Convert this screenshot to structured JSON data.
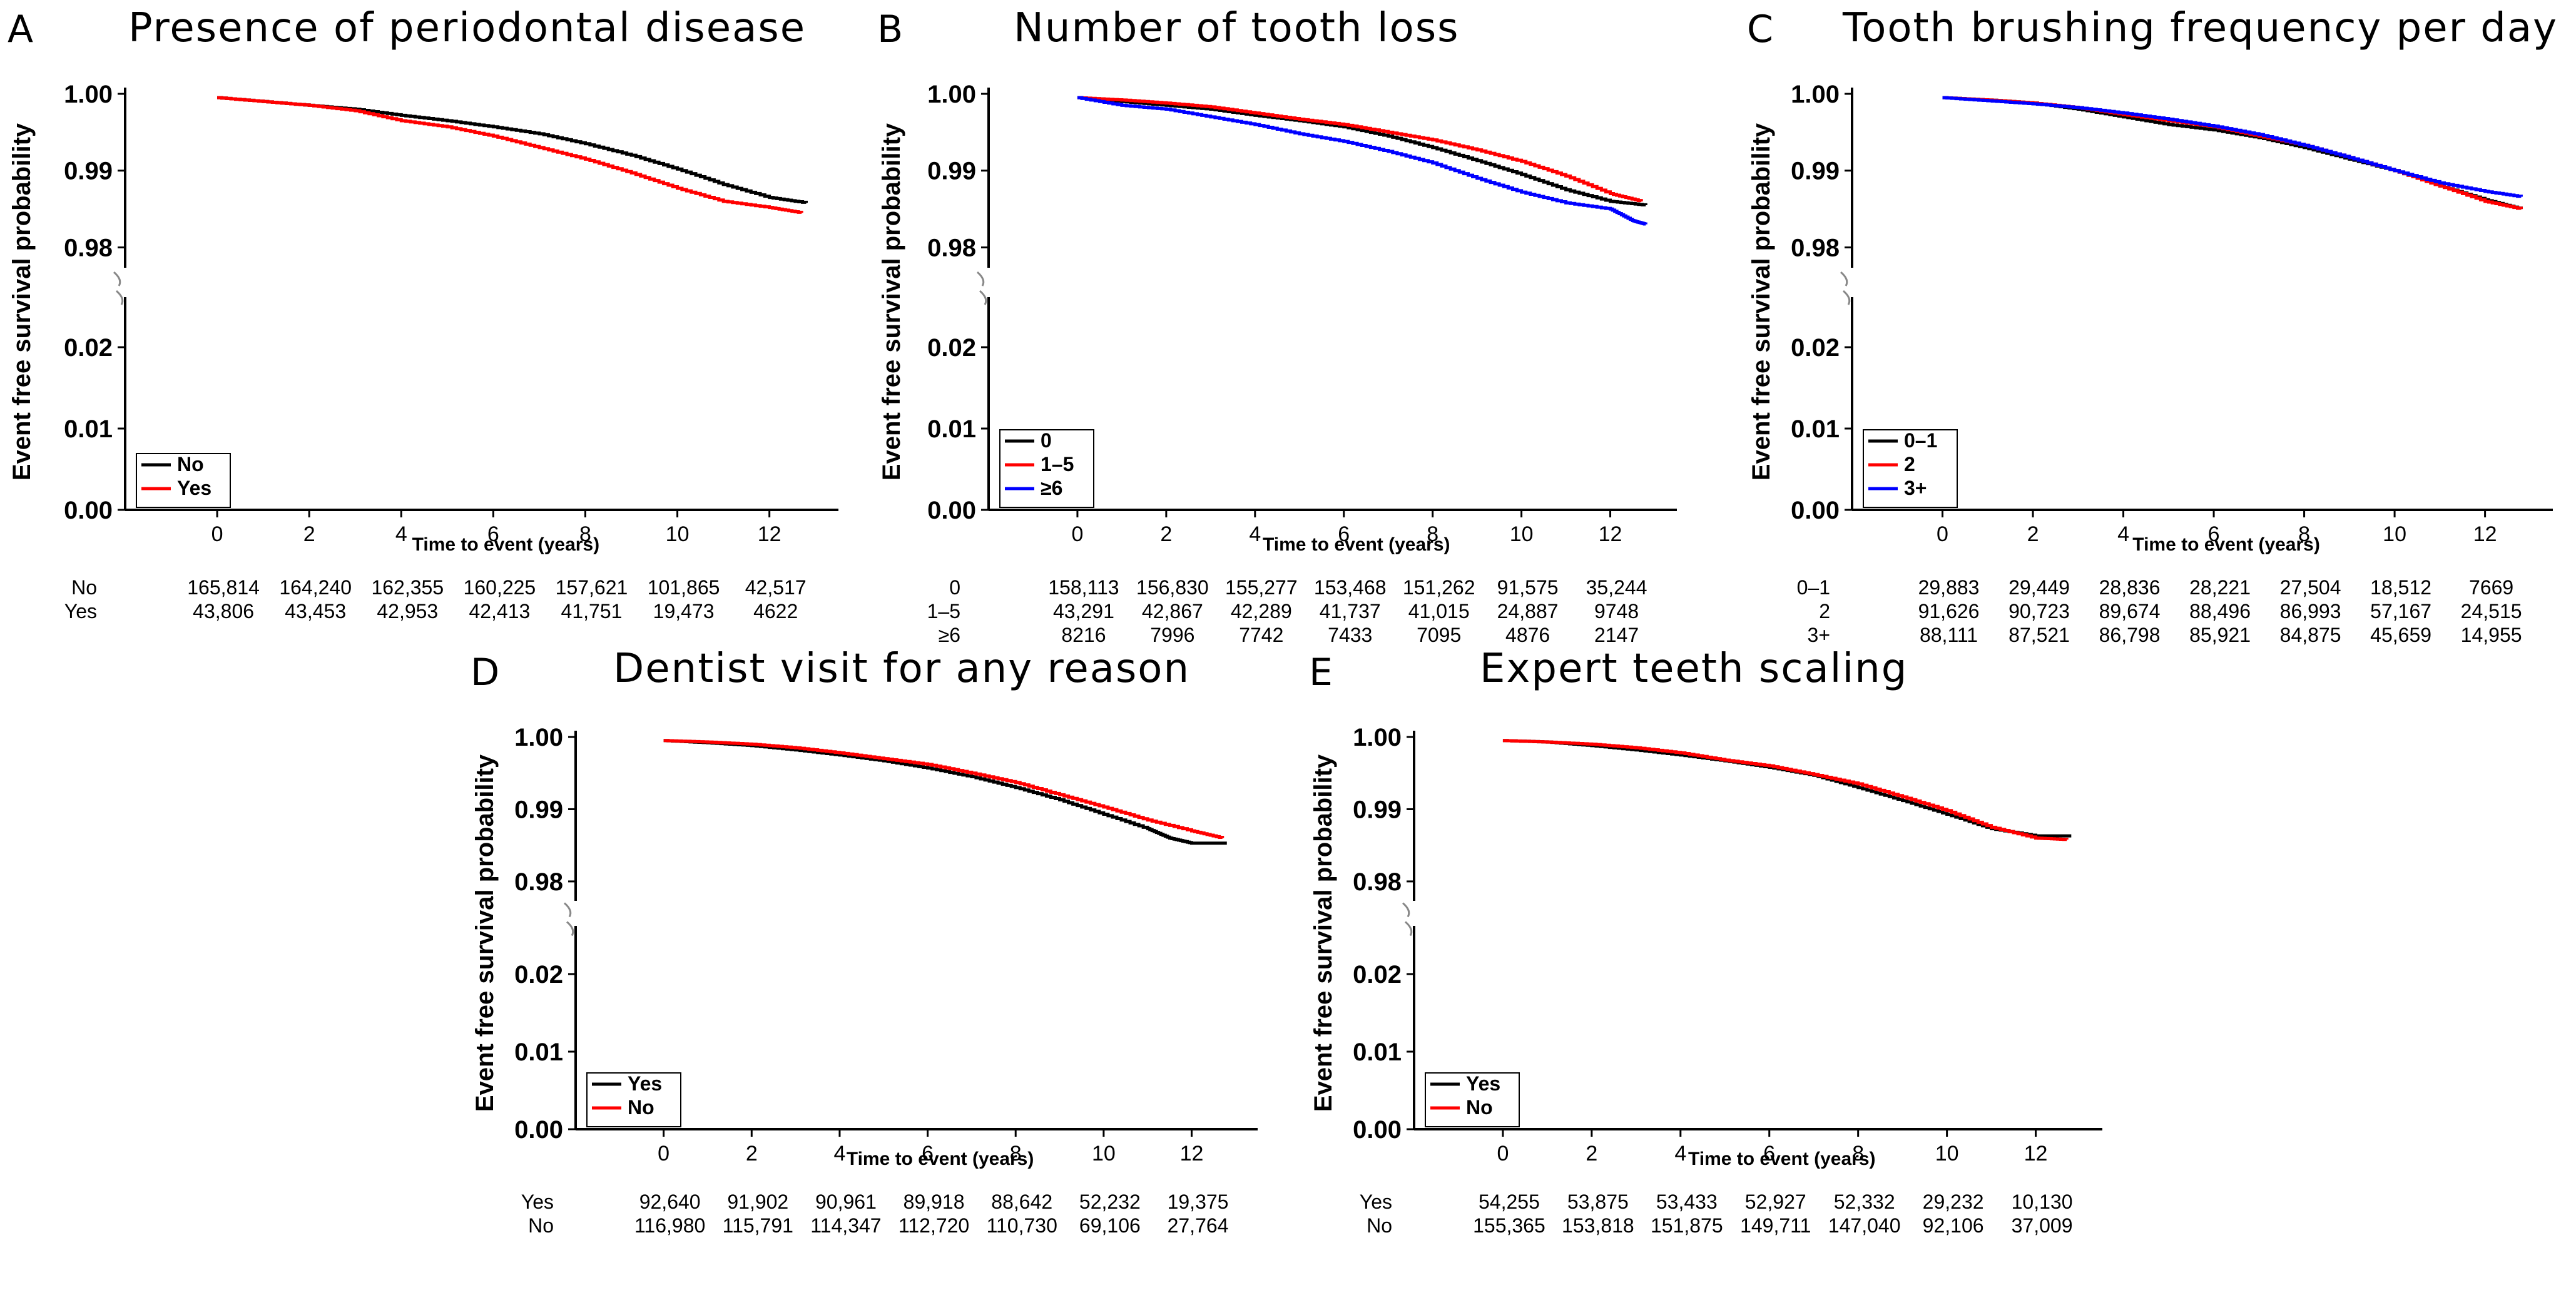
{
  "chart_data": [
    {
      "type": "line",
      "letter": "A",
      "title": "Presence of periodontal disease",
      "xlabel": "Time to event (years)",
      "ylabel": "Event free survival probability",
      "xlim": [
        -2,
        13.5
      ],
      "x_ticks": [
        "0",
        "2",
        "4",
        "6",
        "8",
        "10",
        "12"
      ],
      "ylim_upper": [
        0.978,
        1.0
      ],
      "ylim_lower": [
        0.0,
        0.025
      ],
      "y_ticks_upper": [
        "1.00",
        "0.99",
        "0.98"
      ],
      "y_ticks_lower": [
        "0.02",
        "0.01",
        "0.00"
      ],
      "legend_position": "bottom-left",
      "series": [
        {
          "name": "No",
          "color": "#000000",
          "x": [
            0,
            1,
            2,
            3,
            4,
            5,
            6,
            7,
            8,
            9,
            10,
            11,
            12,
            12.8
          ],
          "y": [
            0.9995,
            0.999,
            0.9985,
            0.998,
            0.9972,
            0.9965,
            0.9957,
            0.9948,
            0.9935,
            0.992,
            0.9902,
            0.9882,
            0.9865,
            0.9858
          ]
        },
        {
          "name": "Yes",
          "color": "#ff0000",
          "x": [
            0,
            1,
            2,
            3,
            4,
            5,
            6,
            7,
            8,
            9,
            10,
            11,
            12,
            12.7
          ],
          "y": [
            0.9995,
            0.999,
            0.9985,
            0.9978,
            0.9965,
            0.9957,
            0.9945,
            0.993,
            0.9915,
            0.9897,
            0.9877,
            0.986,
            0.9852,
            0.9845
          ]
        }
      ],
      "risk_table": [
        {
          "label": "No",
          "counts": [
            "165,814",
            "164,240",
            "162,355",
            "160,225",
            "157,621",
            "101,865",
            "42,517"
          ]
        },
        {
          "label": "Yes",
          "counts": [
            "43,806",
            "43,453",
            "42,953",
            "42,413",
            "41,751",
            "19,473",
            "4622"
          ]
        }
      ]
    },
    {
      "type": "line",
      "letter": "B",
      "title": "Number of tooth loss",
      "xlabel": "Time to event (years)",
      "ylabel": "Event free survival probability",
      "xlim": [
        -2,
        13.5
      ],
      "x_ticks": [
        "0",
        "2",
        "4",
        "6",
        "8",
        "10",
        "12"
      ],
      "ylim_upper": [
        0.978,
        1.0
      ],
      "ylim_lower": [
        0.0,
        0.025
      ],
      "y_ticks_upper": [
        "1.00",
        "0.99",
        "0.98"
      ],
      "y_ticks_lower": [
        "0.02",
        "0.01",
        "0.00"
      ],
      "legend_position": "bottom-left",
      "series": [
        {
          "name": "0",
          "color": "#000000",
          "x": [
            0,
            1,
            2,
            3,
            4,
            5,
            6,
            7,
            8,
            9,
            10,
            11,
            12,
            12.8
          ],
          "y": [
            0.9995,
            0.999,
            0.9985,
            0.998,
            0.9972,
            0.9965,
            0.9957,
            0.9945,
            0.993,
            0.9913,
            0.9895,
            0.9875,
            0.986,
            0.9855
          ]
        },
        {
          "name": "1–5",
          "color": "#ff0000",
          "x": [
            0,
            1,
            2,
            3,
            4,
            5,
            6,
            7,
            8,
            9,
            10,
            11,
            12,
            12.7
          ],
          "y": [
            0.9995,
            0.9992,
            0.9988,
            0.9983,
            0.9975,
            0.9967,
            0.996,
            0.995,
            0.994,
            0.9927,
            0.9912,
            0.9893,
            0.987,
            0.986
          ]
        },
        {
          "name": "≥6",
          "color": "#0000ff",
          "x": [
            0,
            1,
            2,
            3,
            4,
            5,
            6,
            7,
            8,
            9,
            10,
            11,
            12,
            12.5,
            12.8
          ],
          "y": [
            0.9995,
            0.9985,
            0.998,
            0.997,
            0.996,
            0.9948,
            0.9938,
            0.9925,
            0.991,
            0.989,
            0.9872,
            0.9858,
            0.985,
            0.9835,
            0.983
          ]
        }
      ],
      "risk_table": [
        {
          "label": "0",
          "counts": [
            "158,113",
            "156,830",
            "155,277",
            "153,468",
            "151,262",
            "91,575",
            "35,244"
          ]
        },
        {
          "label": "1–5",
          "counts": [
            "43,291",
            "42,867",
            "42,289",
            "41,737",
            "41,015",
            "24,887",
            "9748"
          ]
        },
        {
          "label": "≥6",
          "counts": [
            "8216",
            "7996",
            "7742",
            "7433",
            "7095",
            "4876",
            "2147"
          ]
        }
      ]
    },
    {
      "type": "line",
      "letter": "C",
      "title": "Tooth brushing frequency per day",
      "xlabel": "Time to event (years)",
      "ylabel": "Event free survival probability",
      "xlim": [
        -2,
        13.5
      ],
      "x_ticks": [
        "0",
        "2",
        "4",
        "6",
        "8",
        "10",
        "12"
      ],
      "ylim_upper": [
        0.978,
        1.0
      ],
      "ylim_lower": [
        0.0,
        0.025
      ],
      "y_ticks_upper": [
        "1.00",
        "0.99",
        "0.98"
      ],
      "y_ticks_lower": [
        "0.02",
        "0.01",
        "0.00"
      ],
      "legend_position": "bottom-left",
      "series": [
        {
          "name": "0–1",
          "color": "#000000",
          "x": [
            0,
            1,
            2,
            3,
            4,
            5,
            6,
            7,
            8,
            9,
            10,
            11,
            12,
            12.8
          ],
          "y": [
            0.9995,
            0.9992,
            0.9988,
            0.998,
            0.997,
            0.996,
            0.9953,
            0.9943,
            0.993,
            0.9915,
            0.99,
            0.988,
            0.9862,
            0.985
          ]
        },
        {
          "name": "2",
          "color": "#ff0000",
          "x": [
            0,
            1,
            2,
            3,
            4,
            5,
            6,
            7,
            8,
            9,
            10,
            11,
            12,
            12.8
          ],
          "y": [
            0.9995,
            0.9992,
            0.9988,
            0.9982,
            0.9973,
            0.9965,
            0.9957,
            0.9945,
            0.9933,
            0.9917,
            0.99,
            0.988,
            0.986,
            0.985
          ]
        },
        {
          "name": "3+",
          "color": "#0000ff",
          "x": [
            0,
            1,
            2,
            3,
            4,
            5,
            6,
            7,
            8,
            9,
            10,
            11,
            12,
            12.8
          ],
          "y": [
            0.9995,
            0.9991,
            0.9987,
            0.9982,
            0.9975,
            0.9967,
            0.9958,
            0.9947,
            0.9933,
            0.9917,
            0.99,
            0.9884,
            0.9873,
            0.9866
          ]
        }
      ],
      "risk_table": [
        {
          "label": "0–1",
          "counts": [
            "29,883",
            "29,449",
            "28,836",
            "28,221",
            "27,504",
            "18,512",
            "7669"
          ]
        },
        {
          "label": "2",
          "counts": [
            "91,626",
            "90,723",
            "89,674",
            "88,496",
            "86,993",
            "57,167",
            "24,515"
          ]
        },
        {
          "label": "3+",
          "counts": [
            "88,111",
            "87,521",
            "86,798",
            "85,921",
            "84,875",
            "45,659",
            "14,955"
          ]
        }
      ]
    },
    {
      "type": "line",
      "letter": "D",
      "title": "Dentist visit for any reason",
      "xlabel": "Time to event (years)",
      "ylabel": "Event free survival probability",
      "xlim": [
        -2,
        13.5
      ],
      "x_ticks": [
        "0",
        "2",
        "4",
        "6",
        "8",
        "10",
        "12"
      ],
      "ylim_upper": [
        0.978,
        1.0
      ],
      "ylim_lower": [
        0.0,
        0.025
      ],
      "y_ticks_upper": [
        "1.00",
        "0.99",
        "0.98"
      ],
      "y_ticks_lower": [
        "0.02",
        "0.01",
        "0.00"
      ],
      "legend_position": "bottom-left",
      "series": [
        {
          "name": "Yes",
          "color": "#000000",
          "x": [
            0,
            1,
            2,
            3,
            4,
            5,
            6,
            7,
            8,
            9,
            10,
            11,
            11.5,
            12,
            12.8
          ],
          "y": [
            0.9995,
            0.9992,
            0.9988,
            0.9982,
            0.9975,
            0.9967,
            0.9957,
            0.9945,
            0.993,
            0.9913,
            0.9893,
            0.9873,
            0.986,
            0.9853,
            0.9853
          ]
        },
        {
          "name": "No",
          "color": "#ff0000",
          "x": [
            0,
            1,
            2,
            3,
            4,
            5,
            6,
            7,
            8,
            9,
            10,
            11,
            12,
            12.7
          ],
          "y": [
            0.9995,
            0.9993,
            0.999,
            0.9985,
            0.9978,
            0.997,
            0.9962,
            0.995,
            0.9937,
            0.992,
            0.9903,
            0.9885,
            0.987,
            0.986
          ]
        }
      ],
      "risk_table": [
        {
          "label": "Yes",
          "counts": [
            "92,640",
            "91,902",
            "90,961",
            "89,918",
            "88,642",
            "52,232",
            "19,375"
          ]
        },
        {
          "label": "No",
          "counts": [
            "116,980",
            "115,791",
            "114,347",
            "112,720",
            "110,730",
            "69,106",
            "27,764"
          ]
        }
      ]
    },
    {
      "type": "line",
      "letter": "E",
      "title": "Expert teeth scaling",
      "xlabel": "Time to event (years)",
      "ylabel": "Event free survival probability",
      "xlim": [
        -2,
        13.5
      ],
      "x_ticks": [
        "0",
        "2",
        "4",
        "6",
        "8",
        "10",
        "12"
      ],
      "ylim_upper": [
        0.978,
        1.0
      ],
      "ylim_lower": [
        0.0,
        0.025
      ],
      "y_ticks_upper": [
        "1.00",
        "0.99",
        "0.98"
      ],
      "y_ticks_lower": [
        "0.02",
        "0.01",
        "0.00"
      ],
      "legend_position": "bottom-left",
      "series": [
        {
          "name": "Yes",
          "color": "#000000",
          "x": [
            0,
            1,
            2,
            3,
            4,
            5,
            6,
            7,
            8,
            9,
            10,
            11,
            12,
            12.8
          ],
          "y": [
            0.9995,
            0.9993,
            0.9988,
            0.9982,
            0.9975,
            0.9967,
            0.9958,
            0.9947,
            0.993,
            0.9912,
            0.9893,
            0.9873,
            0.9863,
            0.9863
          ]
        },
        {
          "name": "No",
          "color": "#ff0000",
          "x": [
            0,
            1,
            2,
            3,
            4,
            5,
            6,
            7,
            8,
            9,
            10,
            11,
            12,
            12.7
          ],
          "y": [
            0.9995,
            0.9993,
            0.999,
            0.9985,
            0.9978,
            0.9968,
            0.996,
            0.9948,
            0.9935,
            0.9917,
            0.9898,
            0.9875,
            0.986,
            0.9858
          ]
        }
      ],
      "risk_table": [
        {
          "label": "Yes",
          "counts": [
            "54,255",
            "53,875",
            "53,433",
            "52,927",
            "52,332",
            "29,232",
            "10,130"
          ]
        },
        {
          "label": "No",
          "counts": [
            "155,365",
            "153,818",
            "151,875",
            "149,711",
            "147,040",
            "92,106",
            "37,009"
          ]
        }
      ]
    }
  ]
}
